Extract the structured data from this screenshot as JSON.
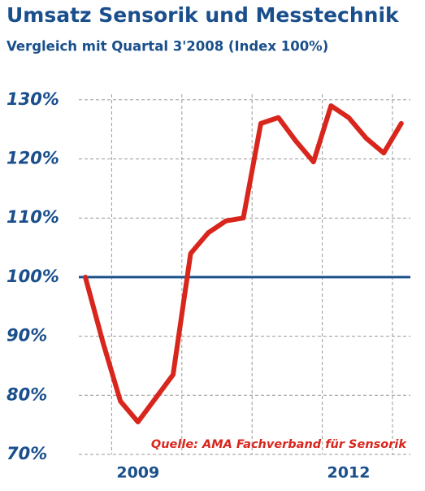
{
  "chart_data": {
    "type": "line",
    "title": "Umsatz Sensorik und Messtechnik",
    "subtitle": "Vergleich mit Quartal 3'2008 (Index 100%)",
    "source": "Quelle: AMA Fachverband für Sensorik",
    "categories": [
      null,
      null,
      null,
      "2009",
      null,
      null,
      null,
      null,
      null,
      null,
      null,
      null,
      null,
      null,
      null,
      "2012",
      null,
      null,
      null
    ],
    "series": [
      {
        "name": "Umsatz",
        "color": "#d8261d",
        "values": [
          100,
          89,
          79,
          75.5,
          79.5,
          83.5,
          104,
          107.5,
          109.5,
          110,
          126,
          127,
          123,
          119.5,
          129,
          127,
          123.5,
          121,
          126
        ]
      }
    ],
    "hline": {
      "value": 100,
      "color": "#1a4f8c"
    },
    "ylim": [
      70,
      133
    ],
    "yticks": [
      {
        "value": 70,
        "label": "70%"
      },
      {
        "value": 80,
        "label": "80%"
      },
      {
        "value": 90,
        "label": "90%"
      },
      {
        "value": 100,
        "label": "100%"
      },
      {
        "value": 110,
        "label": "110%"
      },
      {
        "value": 120,
        "label": "120%"
      },
      {
        "value": 130,
        "label": "130%"
      }
    ],
    "grid": true
  }
}
